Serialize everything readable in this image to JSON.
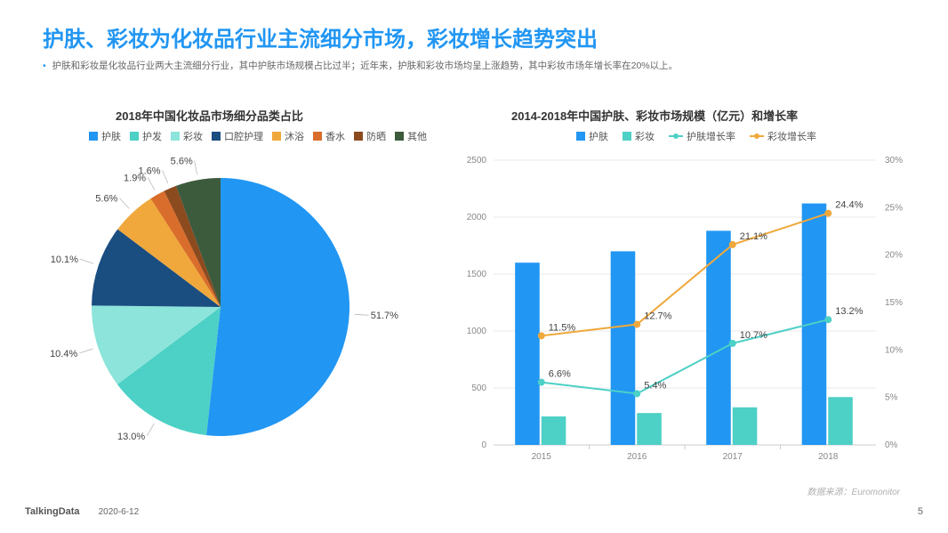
{
  "title": "护肤、彩妆为化妆品行业主流细分市场，彩妆增长趋势突出",
  "subtitle": "护肤和彩妆是化妆品行业两大主流细分行业，其中护肤市场规模占比过半；近年来，护肤和彩妆市场均呈上涨趋势，其中彩妆市场年增长率在20%以上。",
  "pie": {
    "title": "2018年中国化妆品市场细分品类占比",
    "items": [
      {
        "label": "护肤",
        "value": 51.7,
        "color": "#2196f3"
      },
      {
        "label": "护发",
        "value": 13.0,
        "color": "#4dd0c6"
      },
      {
        "label": "彩妆",
        "value": 10.4,
        "color": "#8ce4da"
      },
      {
        "label": "口腔护理",
        "value": 10.1,
        "color": "#1a4d80"
      },
      {
        "label": "沐浴",
        "value": 5.6,
        "color": "#f0a83c"
      },
      {
        "label": "香水",
        "value": 1.9,
        "color": "#d96d2b"
      },
      {
        "label": "防晒",
        "value": 1.6,
        "color": "#8c4a1f"
      },
      {
        "label": "其他",
        "value": 5.6,
        "color": "#3c5a3c"
      }
    ],
    "label_fontsize": 11,
    "start_angle_deg": -90
  },
  "combo": {
    "title": "2014-2018年中国护肤、彩妆市场规模（亿元）和增长率",
    "categories": [
      "2015",
      "2016",
      "2017",
      "2018"
    ],
    "y_left": {
      "min": 0,
      "max": 2500,
      "step": 500
    },
    "y_right": {
      "min": 0,
      "max": 30,
      "step": 5,
      "suffix": "%"
    },
    "bars": [
      {
        "label": "护肤",
        "color": "#2196f3",
        "values": [
          1600,
          1700,
          1880,
          2120
        ]
      },
      {
        "label": "彩妆",
        "color": "#4dd0c6",
        "values": [
          250,
          280,
          330,
          420
        ]
      }
    ],
    "lines": [
      {
        "label": "护肤增长率",
        "color": "#4dd0c6",
        "values": [
          6.6,
          5.4,
          10.7,
          13.2
        ]
      },
      {
        "label": "彩妆增长率",
        "color": "#f0a83c",
        "values": [
          11.5,
          12.7,
          21.1,
          24.4
        ]
      }
    ],
    "bar_group_width": 0.55,
    "grid_color": "#e0e0e0",
    "axis_color": "#cccccc"
  },
  "footer": {
    "logo": "TalkingData",
    "date": "2020-6-12",
    "page": "5",
    "source": "数据来源：Euromonitor"
  }
}
